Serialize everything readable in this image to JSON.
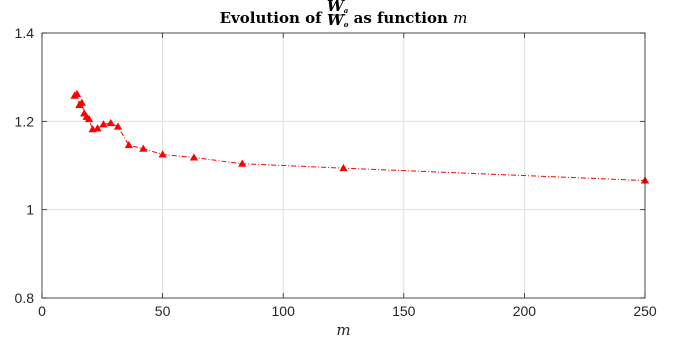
{
  "chart_data": {
    "type": "line",
    "title": {
      "prefix": "Evolution of",
      "fraction_numerator": "W",
      "fraction_numerator_sub": "a",
      "fraction_denominator": "W",
      "fraction_denominator_sub": "o",
      "suffix": "as function",
      "variable": "m"
    },
    "xlabel": "m",
    "ylabel": "",
    "xlim": [
      0,
      250
    ],
    "ylim": [
      0.8,
      1.4
    ],
    "xticks": [
      0,
      50,
      100,
      150,
      200,
      250
    ],
    "yticks": [
      0.8,
      1.0,
      1.2,
      1.4
    ],
    "xtick_labels": [
      "0",
      "50",
      "100",
      "150",
      "200",
      "250"
    ],
    "ytick_labels": [
      "0.8",
      "1",
      "1.2",
      "1.4"
    ],
    "grid": true,
    "series": [
      {
        "color": "#ff0000",
        "line_style": "dash-dot",
        "marker": "triangle-up",
        "points": [
          {
            "x": 13.5,
            "y": 1.258
          },
          {
            "x": 14.5,
            "y": 1.262
          },
          {
            "x": 15.5,
            "y": 1.237
          },
          {
            "x": 16.5,
            "y": 1.242
          },
          {
            "x": 17.5,
            "y": 1.218
          },
          {
            "x": 18.5,
            "y": 1.21
          },
          {
            "x": 19.5,
            "y": 1.205
          },
          {
            "x": 21.0,
            "y": 1.182
          },
          {
            "x": 23.0,
            "y": 1.184
          },
          {
            "x": 25.5,
            "y": 1.193
          },
          {
            "x": 28.5,
            "y": 1.196
          },
          {
            "x": 31.5,
            "y": 1.188
          },
          {
            "x": 36.0,
            "y": 1.146
          },
          {
            "x": 42.0,
            "y": 1.138
          },
          {
            "x": 50.0,
            "y": 1.125
          },
          {
            "x": 63.0,
            "y": 1.118
          },
          {
            "x": 83.0,
            "y": 1.104
          },
          {
            "x": 125.0,
            "y": 1.094
          },
          {
            "x": 250.0,
            "y": 1.066
          }
        ]
      }
    ]
  }
}
